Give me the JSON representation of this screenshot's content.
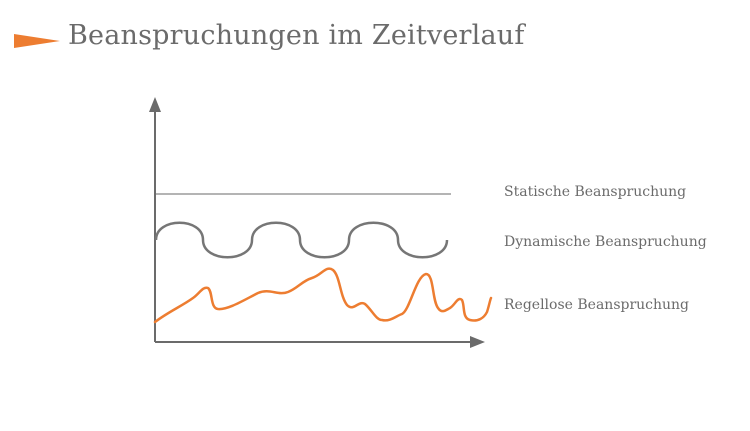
{
  "slide": {
    "title": "Beanspruchungen im Zeitverlauf",
    "accent_color": "#ed7d31",
    "text_color": "#6b6b6b"
  },
  "diagram": {
    "series": [
      {
        "label": "Statische Beanspruchung",
        "color": "#b4b4b4"
      },
      {
        "label": "Dynamische Beanspruchung",
        "color": "#767676"
      },
      {
        "label": "Regellose Beanspruchung",
        "color": "#ed7d31"
      }
    ],
    "axis_color": "#6b6b6b"
  }
}
